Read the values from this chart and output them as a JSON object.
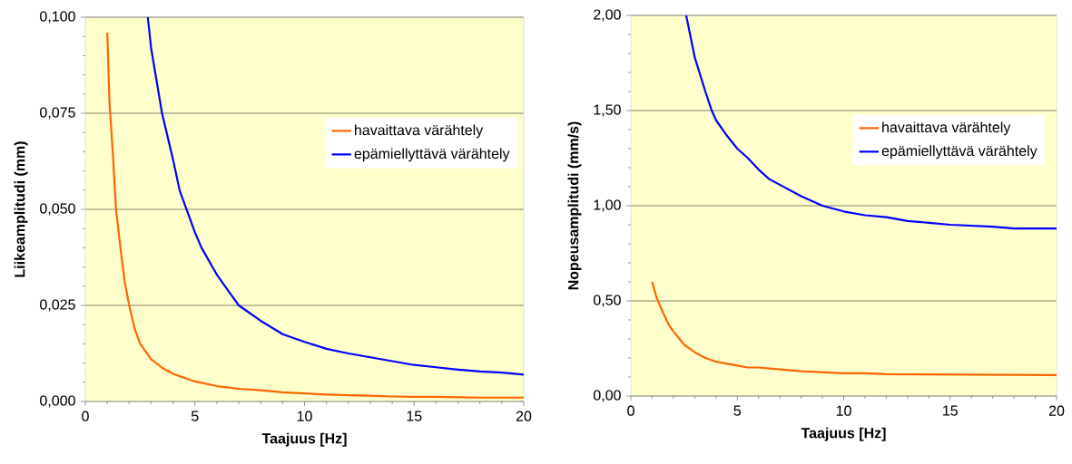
{
  "chart_data": [
    {
      "type": "line",
      "xlabel": "Taajuus  [Hz]",
      "ylabel": "Liikeamplitudi (mm)",
      "xlim": [
        0,
        20
      ],
      "ylim": [
        0,
        0.1
      ],
      "xticks": [
        0,
        5,
        10,
        15,
        20
      ],
      "yticks": [
        {
          "value": 0,
          "label": "0,000"
        },
        {
          "value": 0.025,
          "label": "0,025"
        },
        {
          "value": 0.05,
          "label": "0,050"
        },
        {
          "value": 0.075,
          "label": "0,075"
        },
        {
          "value": 0.1,
          "label": "0,100"
        }
      ],
      "grid": "y",
      "legend": "top right",
      "marker": "none",
      "line_style": "solid",
      "series": [
        {
          "name": "havaittava värähtely",
          "color": "#ff6600",
          "x": [
            1,
            1.1,
            1.25,
            1.4,
            1.6,
            1.8,
            2,
            2.25,
            2.5,
            3,
            3.5,
            4,
            5,
            6,
            7,
            8,
            9,
            10,
            11,
            12,
            13,
            14,
            15,
            16,
            17,
            18,
            20
          ],
          "values": [
            0.096,
            0.078,
            0.065,
            0.05,
            0.04,
            0.031,
            0.025,
            0.019,
            0.015,
            0.011,
            0.0088,
            0.0072,
            0.0052,
            0.004,
            0.0033,
            0.0029,
            0.0024,
            0.0021,
            0.0018,
            0.0016,
            0.0015,
            0.0013,
            0.0012,
            0.0012,
            0.0011,
            0.001,
            0.001
          ]
        },
        {
          "name": "epämiellyttävä värähtely",
          "color": "#0000ff",
          "x": [
            2.85,
            3,
            3.5,
            4,
            4.3,
            5,
            5.3,
            6,
            6.5,
            7,
            8,
            9,
            10,
            11,
            12,
            13,
            14,
            15,
            16,
            17,
            18,
            19,
            20
          ],
          "values": [
            0.1,
            0.092,
            0.075,
            0.063,
            0.055,
            0.044,
            0.04,
            0.033,
            0.029,
            0.025,
            0.021,
            0.0175,
            0.0155,
            0.0137,
            0.0125,
            0.0115,
            0.0105,
            0.0095,
            0.0089,
            0.0083,
            0.0078,
            0.0075,
            0.007
          ]
        }
      ]
    },
    {
      "type": "line",
      "xlabel": "Taajuus  [Hz]",
      "ylabel": "Nopeusamplitudi (mm/s)",
      "xlim": [
        0,
        20
      ],
      "ylim": [
        0,
        2
      ],
      "xticks": [
        0,
        5,
        10,
        15,
        20
      ],
      "yticks": [
        {
          "value": 0,
          "label": "0,00"
        },
        {
          "value": 0.5,
          "label": "0,50"
        },
        {
          "value": 1,
          "label": "1,00"
        },
        {
          "value": 1.5,
          "label": "1,50"
        },
        {
          "value": 2,
          "label": "2,00"
        }
      ],
      "grid": "y",
      "legend": "top right",
      "marker": "none",
      "line_style": "solid",
      "series": [
        {
          "name": "havaittava värähtely",
          "color": "#ff6600",
          "x": [
            1,
            1.2,
            1.5,
            1.8,
            2,
            2.5,
            3,
            3.5,
            4,
            5,
            5.5,
            6,
            7,
            8,
            10,
            11,
            12,
            20
          ],
          "values": [
            0.6,
            0.52,
            0.44,
            0.37,
            0.34,
            0.27,
            0.23,
            0.2,
            0.18,
            0.16,
            0.15,
            0.15,
            0.14,
            0.13,
            0.12,
            0.12,
            0.115,
            0.11
          ]
        },
        {
          "name": "epämiellyttävä värähtely",
          "color": "#0000ff",
          "x": [
            2.6,
            3,
            3.5,
            3.8,
            4,
            4.5,
            5,
            5.5,
            6,
            6.5,
            7,
            8,
            9,
            10,
            11,
            12,
            13,
            14,
            15,
            17,
            18,
            20
          ],
          "values": [
            2.0,
            1.78,
            1.6,
            1.5,
            1.45,
            1.37,
            1.3,
            1.25,
            1.19,
            1.14,
            1.11,
            1.05,
            1.0,
            0.97,
            0.95,
            0.94,
            0.92,
            0.91,
            0.9,
            0.89,
            0.88,
            0.88
          ]
        }
      ]
    }
  ]
}
